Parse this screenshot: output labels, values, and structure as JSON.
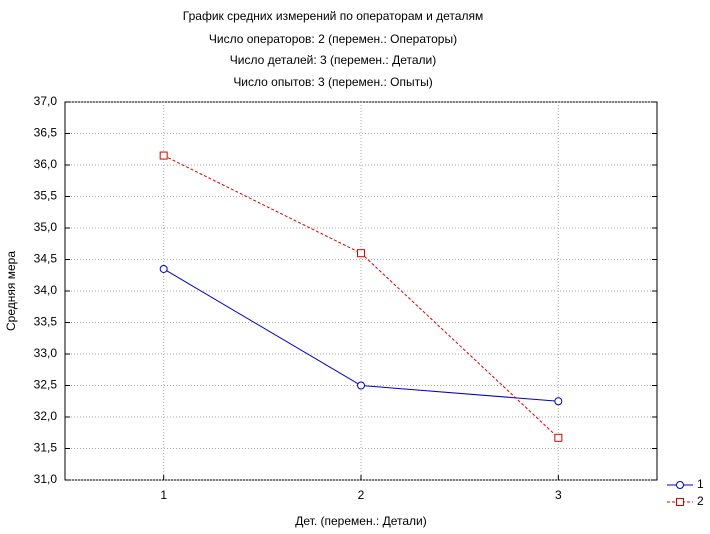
{
  "chart_data": {
    "type": "line",
    "title_lines": [
      "График средних измерений по операторам и деталям",
      "Число операторов: 2   (перемен.: Операторы)",
      "Число    деталей: 3   (перемен.: Детали)",
      "Число     опытов: 3   (перемен.: Опыты)"
    ],
    "x_label": "Дет.  (перемен.: Детали)",
    "y_label": "Средняя мера",
    "categories": [
      "1",
      "2",
      "3"
    ],
    "series": [
      {
        "name": "1",
        "color": "#0000cc",
        "dashed": false,
        "marker": "circle",
        "values": [
          34.35,
          32.5,
          32.25
        ]
      },
      {
        "name": "2",
        "color": "#dd0000",
        "dashed": true,
        "marker": "square",
        "values": [
          36.15,
          34.6,
          31.67
        ]
      }
    ],
    "ylim": [
      31,
      37
    ],
    "yticks": [
      {
        "value": 31,
        "label": "31,0"
      },
      {
        "value": 31.5,
        "label": "31,5"
      },
      {
        "value": 32,
        "label": "32,0"
      },
      {
        "value": 32.5,
        "label": "32,5"
      },
      {
        "value": 33,
        "label": "33,0"
      },
      {
        "value": 33.5,
        "label": "33,5"
      },
      {
        "value": 34,
        "label": "34,0"
      },
      {
        "value": 34.5,
        "label": "34,5"
      },
      {
        "value": 35,
        "label": "35,0"
      },
      {
        "value": 35.5,
        "label": "35,5"
      },
      {
        "value": 36,
        "label": "36,0"
      },
      {
        "value": 36.5,
        "label": "36,5"
      },
      {
        "value": 37,
        "label": "37,0"
      }
    ],
    "grid": true,
    "legend": "bottom-right"
  }
}
